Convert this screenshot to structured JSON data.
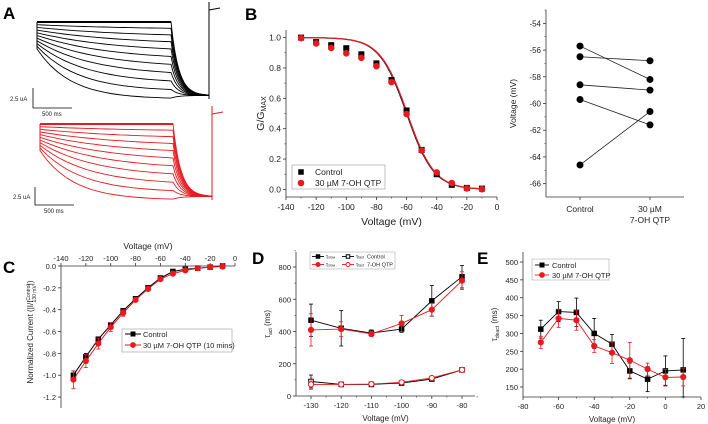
{
  "panels": {
    "A": "A",
    "B": "B",
    "C": "C",
    "D": "D",
    "E": "E"
  },
  "colors": {
    "control": "#000000",
    "drug": "#e8191f"
  },
  "traces": {
    "top_scale_current": "2.5 uA",
    "top_scale_time": "500 ms",
    "bottom_scale_current": "2.5 uA",
    "bottom_scale_time": "500 ms",
    "n_sweeps": 11
  },
  "chart_data": [
    {
      "id": "B",
      "type": "scatter",
      "title": "",
      "xlabel": "Voltage (mV)",
      "ylabel": "G/G",
      "ylabel_sub": "MAX",
      "xlim": [
        -140,
        0
      ],
      "ylim": [
        -0.05,
        1.05
      ],
      "xticks": [
        -140,
        -120,
        -100,
        -80,
        -60,
        -40,
        -20,
        0
      ],
      "xtick_labels": [
        "-140",
        "-120",
        "-100",
        "-80",
        "-60",
        "-40",
        "-20",
        "0"
      ],
      "yticks": [
        0,
        0.2,
        0.4,
        0.6,
        0.8,
        1.0
      ],
      "ytick_labels": [
        "0.0",
        "0.2",
        "0.4",
        "0.6",
        "0.8",
        "1.0"
      ],
      "x": [
        -130,
        -120,
        -110,
        -100,
        -90,
        -80,
        -70,
        -60,
        -50,
        -40,
        -30,
        -20,
        -10
      ],
      "series": [
        {
          "name": "Control",
          "marker": "square",
          "values": [
            1.0,
            0.97,
            0.95,
            0.93,
            0.89,
            0.83,
            0.72,
            0.52,
            0.26,
            0.1,
            0.03,
            0.01,
            0.005
          ]
        },
        {
          "name": "30 µM 7-OH QTP",
          "marker": "circle",
          "values": [
            1.0,
            0.965,
            0.935,
            0.9,
            0.87,
            0.815,
            0.71,
            0.5,
            0.26,
            0.115,
            0.045,
            0.01,
            0.005
          ]
        }
      ],
      "fit": {
        "type": "boltzmann",
        "v_half": -60,
        "slope": 9
      },
      "legend": "bottom-left"
    },
    {
      "id": "B-paired",
      "type": "scatter",
      "xlabel": "",
      "ylabel": "Voltage (mV)",
      "ylim": [
        -67,
        -53
      ],
      "yticks": [
        -66,
        -64,
        -62,
        -60,
        -58,
        -56,
        -54
      ],
      "ytick_labels": [
        "-66",
        "-64",
        "-62",
        "-60",
        "-58",
        "-56",
        "-54"
      ],
      "categories": [
        "Control",
        "30 µM\n7-OH QTP"
      ],
      "category_lines": [
        [
          "Control"
        ],
        [
          "30 µM",
          "7-OH QTP"
        ]
      ],
      "pairs": [
        [
          -55.7,
          -58.2
        ],
        [
          -56.5,
          -56.8
        ],
        [
          -58.6,
          -59.0
        ],
        [
          -59.7,
          -61.6
        ],
        [
          -64.6,
          -60.6
        ]
      ]
    },
    {
      "id": "C",
      "type": "line",
      "xlabel": "Voltage (mV)",
      "ylabel": "Normalized Current (|I/I",
      "ylabel_sup": "Control",
      "ylabel_sub": "130 mV",
      "ylabel_end": "|)",
      "xlim": [
        -140,
        0
      ],
      "ylim": [
        -1.25,
        0
      ],
      "xticks": [
        -140,
        -120,
        -100,
        -80,
        -60,
        -40,
        -20,
        0
      ],
      "xtick_labels": [
        "-140",
        "-120",
        "-100",
        "-80",
        "-60",
        "-40",
        "-20",
        "0"
      ],
      "yticks": [
        0,
        -0.2,
        -0.4,
        -0.6,
        -0.8,
        -1.0,
        -1.2
      ],
      "ytick_labels": [
        "0.0",
        "-0.2",
        "-0.4",
        "-0.6",
        "-0.8",
        "-1.0",
        "-1.2"
      ],
      "x": [
        -130,
        -120,
        -110,
        -100,
        -90,
        -80,
        -70,
        -60,
        -50,
        -40,
        -30,
        -20,
        -10
      ],
      "series": [
        {
          "name": "Control",
          "marker": "square",
          "values": [
            -1.0,
            -0.83,
            -0.67,
            -0.54,
            -0.41,
            -0.3,
            -0.2,
            -0.11,
            -0.05,
            -0.03,
            -0.02,
            -0.01,
            0.0
          ],
          "err": [
            0.04,
            0.03,
            0.02,
            0.02,
            0.02,
            0.02,
            0.01,
            0.01,
            0.01,
            0.01,
            0.01,
            0.01,
            0.0
          ]
        },
        {
          "name": "30 µM 7-OH QTP (10 mins)",
          "marker": "circle",
          "values": [
            -1.04,
            -0.87,
            -0.71,
            -0.56,
            -0.43,
            -0.31,
            -0.21,
            -0.12,
            -0.07,
            -0.04,
            -0.02,
            -0.01,
            -0.005
          ],
          "err": [
            0.08,
            0.06,
            0.05,
            0.04,
            0.03,
            0.02,
            0.02,
            0.01,
            0.01,
            0.01,
            0.01,
            0.01,
            0.0
          ]
        }
      ],
      "legend": "center-right"
    },
    {
      "id": "D",
      "type": "line",
      "xlabel": "Voltage (mV)",
      "ylabel": "τ",
      "ylabel_sub": "act",
      "ylabel_end": " (ms)",
      "xlim": [
        -135,
        -78
      ],
      "ylim": [
        0,
        900
      ],
      "xticks": [
        -130,
        -120,
        -110,
        -100,
        -90,
        -80
      ],
      "xtick_labels": [
        "-130",
        "-120",
        "-110",
        "-100",
        "-90",
        "-80"
      ],
      "yticks": [
        0,
        200,
        400,
        600,
        800
      ],
      "ytick_labels": [
        "0",
        "200",
        "400",
        "600",
        "800"
      ],
      "x": [
        -130,
        -120,
        -110,
        -100,
        -90,
        -80
      ],
      "series": [
        {
          "name": "τslow Control",
          "marker": "square",
          "filled": true,
          "color": "control",
          "values": [
            470,
            420,
            390,
            415,
            590,
            740
          ],
          "err": [
            100,
            110,
            20,
            20,
            95,
            70
          ]
        },
        {
          "name": "τfast Control",
          "marker": "square",
          "filled": false,
          "color": "control",
          "values": [
            90,
            72,
            72,
            80,
            105,
            162
          ],
          "err": [
            40,
            5,
            5,
            5,
            5,
            5
          ]
        },
        {
          "name": "τslow 7-OH QTP",
          "marker": "circle",
          "filled": true,
          "color": "drug",
          "values": [
            410,
            415,
            385,
            450,
            535,
            715
          ],
          "err": [
            100,
            45,
            15,
            50,
            40,
            55
          ]
        },
        {
          "name": "τfast 7-OH QTP",
          "marker": "circle",
          "filled": false,
          "color": "drug",
          "values": [
            72,
            72,
            74,
            85,
            112,
            162
          ],
          "err": [
            30,
            5,
            5,
            5,
            5,
            5
          ]
        }
      ],
      "legend_rows": [
        {
          "slow": "slow",
          "fast": "fast",
          "label": "Control"
        },
        {
          "slow": "slow",
          "fast": "fast",
          "label": "7-OH QTP"
        }
      ],
      "legend": "top-left"
    },
    {
      "id": "E",
      "type": "line",
      "xlabel": "Voltage (mV)",
      "ylabel": "τ",
      "ylabel_sub": "deact",
      "ylabel_end": " (ms)",
      "xlim": [
        -80,
        20
      ],
      "ylim": [
        125,
        515
      ],
      "xticks": [
        -80,
        -60,
        -40,
        -20,
        0,
        20
      ],
      "xtick_labels": [
        "-80",
        "-60",
        "-40",
        "-20",
        "0",
        "20"
      ],
      "yticks": [
        150,
        200,
        250,
        300,
        350,
        400,
        450,
        500
      ],
      "ytick_labels": [
        "150",
        "200",
        "250",
        "300",
        "350",
        "400",
        "450",
        "500"
      ],
      "x": [
        -70,
        -60,
        -50,
        -40,
        -30,
        -20,
        -10,
        0,
        10
      ],
      "series": [
        {
          "name": "Control",
          "marker": "square",
          "values": [
            312,
            361,
            359,
            300,
            270,
            195,
            172,
            195,
            198
          ],
          "err": [
            25,
            28,
            40,
            42,
            27,
            22,
            35,
            42,
            88
          ]
        },
        {
          "name": "30 µM 7-OH QTP",
          "marker": "circle",
          "values": [
            275,
            342,
            337,
            265,
            246,
            225,
            200,
            177,
            178
          ],
          "err": [
            17,
            25,
            28,
            18,
            30,
            50,
            17,
            22,
            25
          ]
        }
      ],
      "legend": "top-left"
    }
  ]
}
